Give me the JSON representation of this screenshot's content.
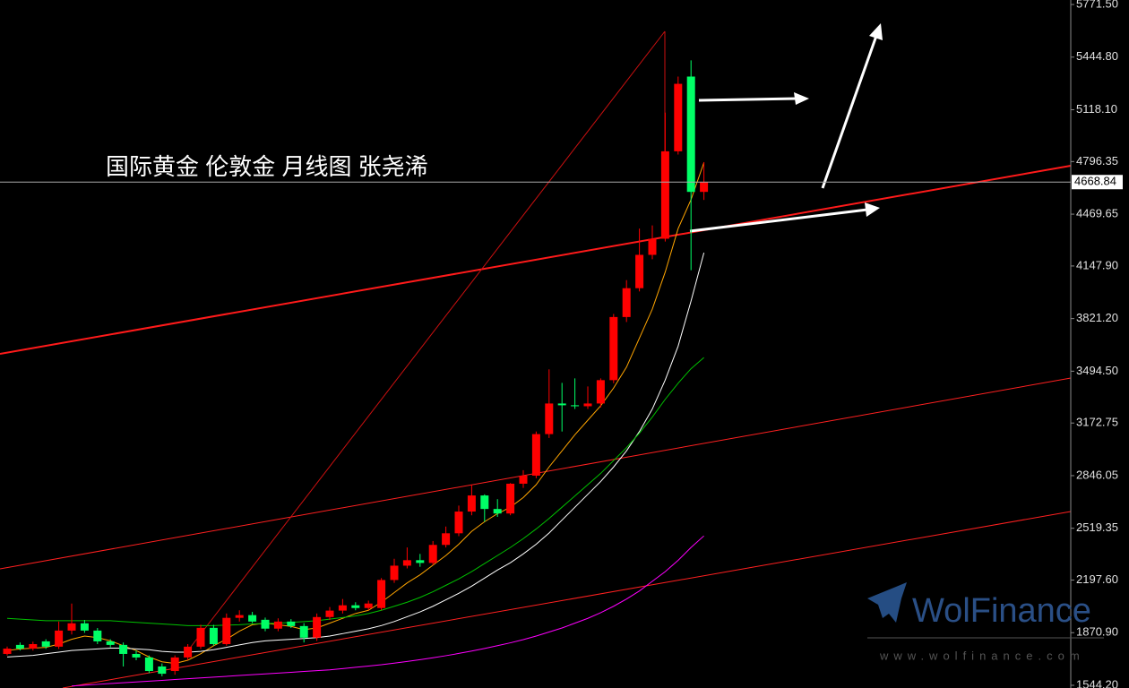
{
  "chart_data": {
    "type": "candlestick",
    "title": "国际黄金 伦敦金 月线图 张尧浠",
    "up_color": "#ff0000",
    "down_color": "#00ff66",
    "open": [
      1739,
      1795,
      1772,
      1817,
      1784,
      1884,
      1929,
      1884,
      1817,
      1795,
      1739,
      1717,
      1661,
      1633,
      1717,
      1784,
      1901,
      1800,
      1963,
      1980,
      1951,
      1896,
      1940,
      1912,
      1840,
      1968,
      2008,
      2041,
      2024,
      2024,
      2198,
      2287,
      2321,
      2304,
      2416,
      2488,
      2623,
      2723,
      2639,
      2611,
      2796,
      2846,
      3104,
      3294,
      3283,
      3277,
      3294,
      3439,
      3831,
      4010,
      4217,
      4317,
      4860,
      5324,
      4608
    ],
    "high": [
      1785,
      1810,
      1815,
      1830,
      1940,
      2052,
      1950,
      1900,
      1830,
      1810,
      1760,
      1730,
      1680,
      1730,
      1800,
      1920,
      1920,
      1990,
      2010,
      2000,
      1965,
      1960,
      1955,
      1930,
      1990,
      2030,
      2080,
      2060,
      2070,
      2210,
      2330,
      2400,
      2360,
      2440,
      2530,
      2660,
      2790,
      2730,
      2700,
      2800,
      2880,
      3120,
      3506,
      3422,
      3450,
      3400,
      3450,
      3850,
      4060,
      4380,
      4400,
      5100,
      5324,
      5425,
      4793
    ],
    "low": [
      1730,
      1760,
      1760,
      1770,
      1770,
      1860,
      1870,
      1800,
      1780,
      1661,
      1700,
      1620,
      1600,
      1610,
      1700,
      1770,
      1790,
      1790,
      1940,
      1930,
      1880,
      1880,
      1900,
      1810,
      1820,
      1950,
      1990,
      2010,
      2010,
      2010,
      2180,
      2270,
      2280,
      2290,
      2400,
      2470,
      2600,
      2560,
      2590,
      2600,
      2770,
      2830,
      3080,
      3120,
      3260,
      3260,
      3270,
      3420,
      3800,
      3990,
      4190,
      4300,
      4840,
      4122,
      4558
    ],
    "close": [
      1772,
      1772,
      1800,
      1784,
      1884,
      1929,
      1884,
      1817,
      1795,
      1739,
      1717,
      1633,
      1616,
      1717,
      1784,
      1901,
      1800,
      1963,
      1980,
      1940,
      1896,
      1940,
      1912,
      1840,
      1968,
      2008,
      2041,
      2024,
      2052,
      2198,
      2287,
      2321,
      2304,
      2416,
      2488,
      2623,
      2723,
      2639,
      2611,
      2796,
      2846,
      3104,
      3294,
      3283,
      3277,
      3294,
      3439,
      3831,
      4010,
      4217,
      4317,
      4860,
      5279,
      4608,
      4668.84
    ],
    "moving_averages": [
      {
        "color": "#ffa500",
        "values": [
          1760,
          1770,
          1775,
          1780,
          1800,
          1830,
          1850,
          1840,
          1820,
          1790,
          1760,
          1720,
          1690,
          1680,
          1700,
          1740,
          1790,
          1830,
          1880,
          1920,
          1930,
          1920,
          1910,
          1890,
          1900,
          1930,
          1960,
          1990,
          2010,
          2060,
          2120,
          2180,
          2230,
          2290,
          2350,
          2420,
          2500,
          2560,
          2610,
          2650,
          2710,
          2790,
          2900,
          3000,
          3100,
          3190,
          3280,
          3390,
          3520,
          3700,
          3880,
          4110,
          4380,
          4560,
          4790
        ]
      },
      {
        "color": "#ffffff",
        "values": [
          1720,
          1725,
          1730,
          1740,
          1750,
          1760,
          1765,
          1770,
          1775,
          1775,
          1770,
          1765,
          1755,
          1750,
          1750,
          1755,
          1765,
          1780,
          1795,
          1810,
          1820,
          1825,
          1830,
          1835,
          1840,
          1850,
          1865,
          1880,
          1895,
          1915,
          1940,
          1970,
          2000,
          2035,
          2075,
          2115,
          2160,
          2210,
          2260,
          2305,
          2360,
          2420,
          2490,
          2570,
          2650,
          2730,
          2810,
          2900,
          3000,
          3120,
          3260,
          3440,
          3650,
          3930,
          4230
        ]
      },
      {
        "color": "#00c000",
        "values": [
          1960,
          1955,
          1950,
          1945,
          1945,
          1945,
          1945,
          1945,
          1945,
          1940,
          1935,
          1930,
          1925,
          1920,
          1915,
          1915,
          1915,
          1918,
          1920,
          1925,
          1928,
          1930,
          1935,
          1940,
          1945,
          1955,
          1965,
          1975,
          1990,
          2010,
          2035,
          2060,
          2090,
          2125,
          2165,
          2205,
          2250,
          2300,
          2350,
          2400,
          2455,
          2515,
          2580,
          2650,
          2720,
          2790,
          2860,
          2940,
          3020,
          3110,
          3210,
          3320,
          3420,
          3510,
          3579
        ]
      },
      {
        "color": "#ff00ff",
        "values": [
          null,
          null,
          null,
          null,
          null,
          1540,
          1545,
          1550,
          1555,
          1560,
          1565,
          1570,
          1575,
          1580,
          1585,
          1590,
          1595,
          1600,
          1605,
          1610,
          1615,
          1620,
          1625,
          1630,
          1635,
          1640,
          1648,
          1656,
          1664,
          1672,
          1682,
          1692,
          1703,
          1715,
          1728,
          1742,
          1757,
          1773,
          1790,
          1808,
          1828,
          1850,
          1875,
          1900,
          1930,
          1960,
          1995,
          2035,
          2080,
          2130,
          2190,
          2250,
          2320,
          2400,
          2472
        ]
      }
    ],
    "ylim": [
      1527.4,
      5799.5
    ],
    "yticks": [
      {
        "value": 5771.5,
        "label": "5771.50"
      },
      {
        "value": 5444.8,
        "label": "5444.80"
      },
      {
        "value": 5118.1,
        "label": "5118.10"
      },
      4796.35,
      4469.65,
      {
        "value": 4147.9,
        "label": "4147.90"
      },
      {
        "value": 3821.2,
        "label": "3821.20"
      },
      {
        "value": 3494.5,
        "label": "3494.50"
      },
      3172.75,
      2846.05,
      2519.35,
      {
        "value": 2197.6,
        "label": "2197.60"
      },
      {
        "value": 1870.9,
        "label": "1870.90"
      },
      {
        "value": 1544.2,
        "label": "1544.20"
      }
    ],
    "last_price": 4668.84,
    "watermark": {
      "brand": "WolFinance",
      "url": "www.wolfinance.com"
    }
  }
}
